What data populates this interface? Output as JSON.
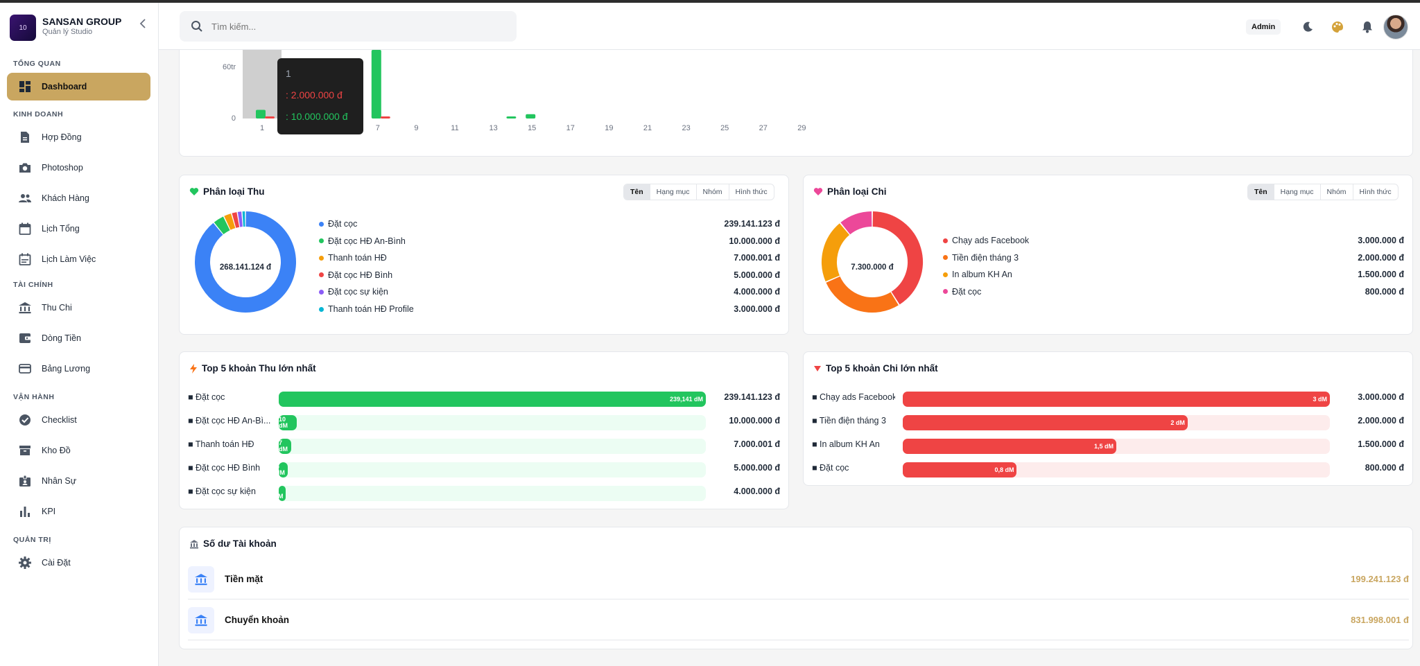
{
  "brand": {
    "name": "SANSAN GROUP",
    "subtitle": "Quản lý Studio",
    "logo_text": "10"
  },
  "sidebar": {
    "sections": [
      {
        "title": "TỔNG QUAN",
        "items": [
          {
            "label": "Dashboard",
            "icon": "dashboard-icon",
            "active": true
          }
        ]
      },
      {
        "title": "KINH DOANH",
        "items": [
          {
            "label": "Hợp Đồng",
            "icon": "document-icon"
          },
          {
            "label": "Photoshop",
            "icon": "camera-icon"
          },
          {
            "label": "Khách Hàng",
            "icon": "people-icon"
          },
          {
            "label": "Lịch Tổng",
            "icon": "calendar-icon"
          },
          {
            "label": "Lịch Làm Việc",
            "icon": "calendar-list-icon"
          }
        ]
      },
      {
        "title": "TÀI CHÍNH",
        "items": [
          {
            "label": "Thu Chi",
            "icon": "bank-icon"
          },
          {
            "label": "Dòng Tiền",
            "icon": "wallet-icon"
          },
          {
            "label": "Bảng Lương",
            "icon": "card-icon"
          }
        ]
      },
      {
        "title": "VẬN HÀNH",
        "items": [
          {
            "label": "Checklist",
            "icon": "check-circle-icon"
          },
          {
            "label": "Kho Đồ",
            "icon": "archive-icon"
          },
          {
            "label": "Nhân Sự",
            "icon": "badge-icon"
          },
          {
            "label": "KPI",
            "icon": "bar-chart-icon"
          }
        ]
      },
      {
        "title": "QUẢN TRỊ",
        "items": [
          {
            "label": "Cài Đặt",
            "icon": "gear-icon"
          }
        ]
      }
    ]
  },
  "header": {
    "search_placeholder": "Tìm kiếm...",
    "role": "Admin"
  },
  "chart_data": {
    "type": "bar",
    "x_ticks": [
      "1",
      "5",
      "7",
      "9",
      "11",
      "13",
      "15",
      "17",
      "19",
      "21",
      "23",
      "25",
      "27",
      "29"
    ],
    "y_ticks": [
      "60tr",
      "0"
    ],
    "series": [
      {
        "name": "",
        "color": "#22c55e",
        "values": {
          "1": 10000000,
          "4": 3000000,
          "7": 100000000,
          "14": 2000000,
          "15": 5000000
        }
      },
      {
        "name": "",
        "color": "#ef4444",
        "values": {
          "1": 2000000,
          "5": 1500000,
          "7": 800000
        }
      }
    ],
    "tooltip": {
      "title": "1",
      "lines": [
        ": 2.000.000 đ",
        ": 10.000.000 đ"
      ]
    }
  },
  "thu": {
    "title": "Phân loại Thu",
    "tabs": [
      "Tên",
      "Hạng mục",
      "Nhóm",
      "Hình thức"
    ],
    "total": "268.141.124 đ",
    "items": [
      {
        "label": "Đặt cọc",
        "value": "239.141.123 đ",
        "color": "#3b82f6",
        "amount": 239141123
      },
      {
        "label": "Đặt cọc HĐ An-Bình",
        "value": "10.000.000 đ",
        "color": "#22c55e",
        "amount": 10000000
      },
      {
        "label": "Thanh toán HĐ",
        "value": "7.000.001 đ",
        "color": "#f59e0b",
        "amount": 7000001
      },
      {
        "label": "Đặt cọc HĐ Bình",
        "value": "5.000.000 đ",
        "color": "#ef4444",
        "amount": 5000000
      },
      {
        "label": "Đặt cọc sự kiện",
        "value": "4.000.000 đ",
        "color": "#8b5cf6",
        "amount": 4000000
      },
      {
        "label": "Thanh toán HĐ Profile",
        "value": "3.000.000 đ",
        "color": "#06b6d4",
        "amount": 3000000
      }
    ]
  },
  "chi": {
    "title": "Phân loại Chi",
    "tabs": [
      "Tên",
      "Hạng mục",
      "Nhóm",
      "Hình thức"
    ],
    "total": "7.300.000 đ",
    "items": [
      {
        "label": "Chạy ads Facebook",
        "value": "3.000.000 đ",
        "color": "#ef4444",
        "amount": 3000000
      },
      {
        "label": "Tiền điện tháng 3",
        "value": "2.000.000 đ",
        "color": "#f97316",
        "amount": 2000000
      },
      {
        "label": "In album KH An",
        "value": "1.500.000 đ",
        "color": "#f59e0b",
        "amount": 1500000
      },
      {
        "label": "Đặt cọc",
        "value": "800.000 đ",
        "color": "#ec4899",
        "amount": 800000
      }
    ]
  },
  "top_thu": {
    "title": "Top 5 khoản Thu lớn nhất",
    "items": [
      {
        "label": "■ Đặt cọc",
        "bar": "239,141 dM",
        "value": "239.141.123 đ",
        "fraction": 1.0
      },
      {
        "label": "■ Đặt cọc HĐ An-Bì...",
        "bar": "10 dM",
        "value": "10.000.000 đ",
        "fraction": 0.042
      },
      {
        "label": "■ Thanh toán HĐ",
        "bar": "7 dM",
        "value": "7.000.001 đ",
        "fraction": 0.029
      },
      {
        "label": "■ Đặt cọc HĐ Bình",
        "bar": "5 dM",
        "value": "5.000.000 đ",
        "fraction": 0.021
      },
      {
        "label": "■ Đặt cọc sự kiện",
        "bar": "4 dM",
        "value": "4.000.000 đ",
        "fraction": 0.017
      }
    ]
  },
  "top_chi": {
    "title": "Top 5 khoản Chi lớn nhất",
    "items": [
      {
        "label": "■ Chạy ads Facebook",
        "bar": "3 dM",
        "value": "3.000.000 đ",
        "fraction": 1.0
      },
      {
        "label": "■ Tiền điện tháng 3",
        "bar": "2 dM",
        "value": "2.000.000 đ",
        "fraction": 0.667
      },
      {
        "label": "■ In album KH An",
        "bar": "1,5 dM",
        "value": "1.500.000 đ",
        "fraction": 0.5
      },
      {
        "label": "■ Đặt cọc",
        "bar": "0,8 dM",
        "value": "800.000 đ",
        "fraction": 0.267
      }
    ]
  },
  "balance": {
    "title": "Số dư Tài khoản",
    "accounts": [
      {
        "name": "Tiền mặt",
        "value": "199.241.123 đ"
      },
      {
        "name": "Chuyển khoản",
        "value": "831.998.001 đ"
      }
    ]
  }
}
